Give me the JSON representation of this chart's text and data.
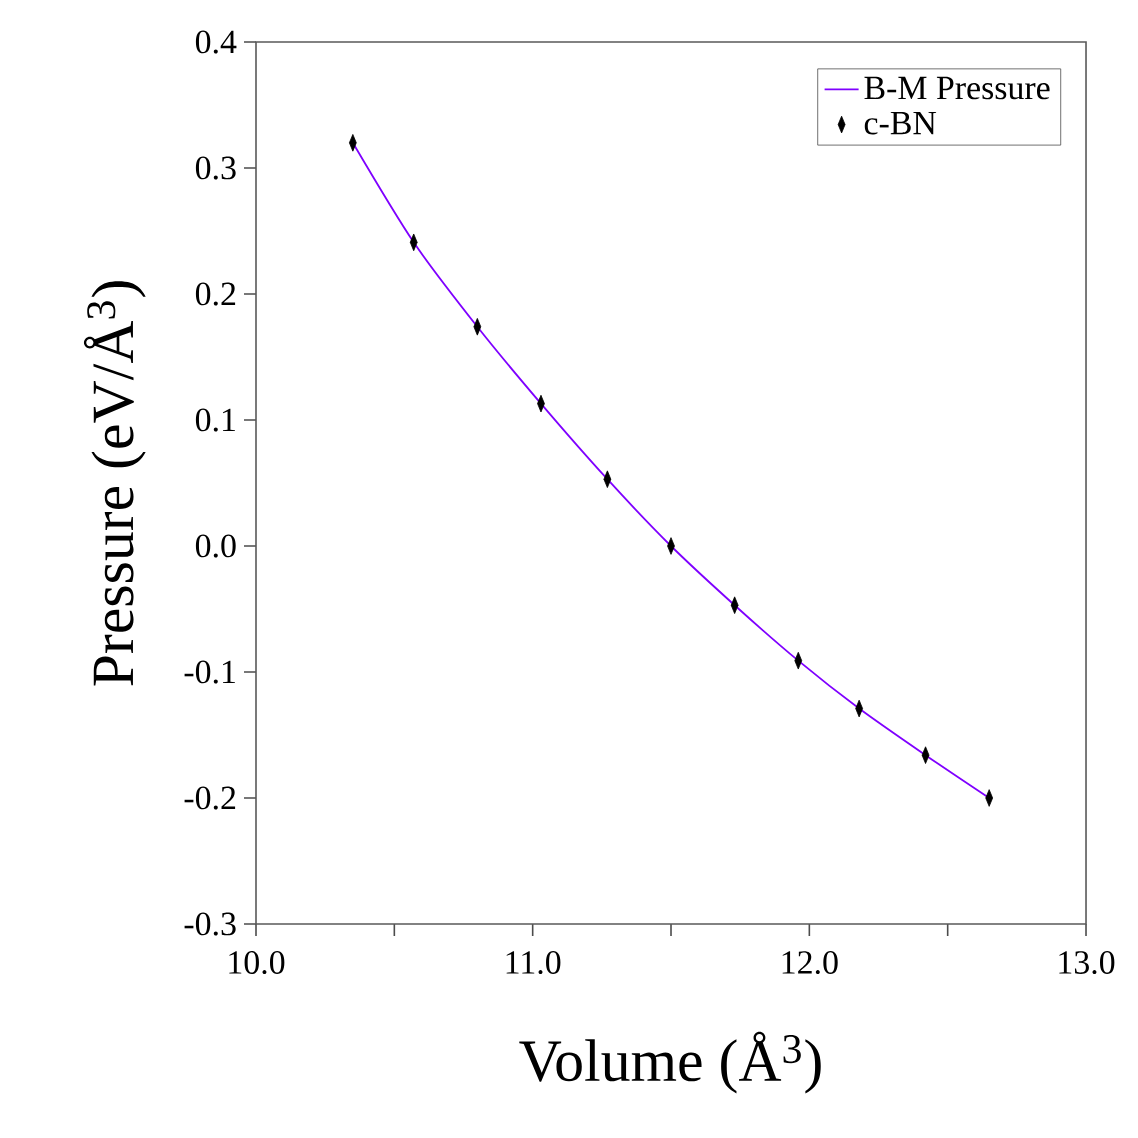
{
  "chart_data": {
    "type": "scatter",
    "xlabel": "Volume (Å$^{3}$)",
    "ylabel": "Pressure (eV/Å$^{3}$)",
    "xlim": [
      10.0,
      13.0
    ],
    "ylim": [
      -0.3,
      0.4
    ],
    "xticks": [
      {
        "value": 10.0,
        "label": "10.0"
      },
      {
        "value": 10.5,
        "label": null
      },
      {
        "value": 11.0,
        "label": "11.0"
      },
      {
        "value": 11.5,
        "label": null
      },
      {
        "value": 12.0,
        "label": "12.0"
      },
      {
        "value": 12.5,
        "label": null
      },
      {
        "value": 13.0,
        "label": "13.0"
      }
    ],
    "yticks": [
      {
        "value": -0.3,
        "label": "-0.3"
      },
      {
        "value": -0.2,
        "label": "-0.2"
      },
      {
        "value": -0.1,
        "label": "-0.1"
      },
      {
        "value": 0.0,
        "label": "0.0"
      },
      {
        "value": 0.1,
        "label": "0.1"
      },
      {
        "value": 0.2,
        "label": "0.2"
      },
      {
        "value": 0.3,
        "label": "0.3"
      },
      {
        "value": 0.4,
        "label": "0.4"
      }
    ],
    "legend": "top right",
    "grid": false,
    "series": [
      {
        "name": "B-M Pressure",
        "type": "line",
        "color": "#7f00ff",
        "marker": "none",
        "line_style": "solid",
        "x": [
          10.35,
          10.57,
          10.8,
          11.03,
          11.27,
          11.5,
          11.73,
          11.96,
          12.18,
          12.42,
          12.65
        ],
        "values": [
          0.32,
          0.241,
          0.174,
          0.113,
          0.053,
          0.0,
          -0.047,
          -0.091,
          -0.129,
          -0.166,
          -0.2
        ]
      },
      {
        "name": "c-BN",
        "color": "#000000",
        "marker": "diamond",
        "x": [
          10.35,
          10.57,
          10.8,
          11.03,
          11.27,
          11.5,
          11.73,
          11.96,
          12.18,
          12.42,
          12.65
        ],
        "values": [
          0.32,
          0.241,
          0.174,
          0.113,
          0.053,
          0.0,
          -0.047,
          -0.091,
          -0.129,
          -0.166,
          -0.2
        ]
      }
    ]
  }
}
